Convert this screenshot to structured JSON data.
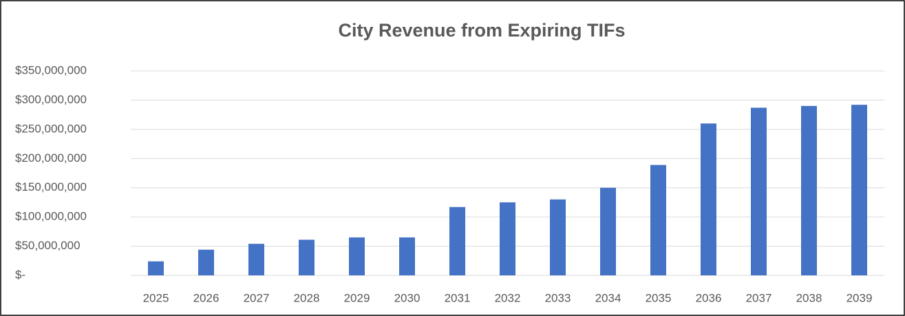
{
  "chart_data": {
    "type": "bar",
    "title": "City Revenue from Expiring TIFs",
    "categories": [
      "2025",
      "2026",
      "2027",
      "2028",
      "2029",
      "2030",
      "2031",
      "2032",
      "2033",
      "2034",
      "2035",
      "2036",
      "2037",
      "2038",
      "2039"
    ],
    "values": [
      24000000,
      44000000,
      54000000,
      61000000,
      65000000,
      65000000,
      117000000,
      125000000,
      130000000,
      150000000,
      189000000,
      260000000,
      287000000,
      290000000,
      292000000
    ],
    "color": "#4472c4",
    "ylim": [
      0,
      350000000
    ],
    "yticks": [
      {
        "value": 0,
        "label": "$-"
      },
      {
        "value": 50000000,
        "label": "$50,000,000"
      },
      {
        "value": 100000000,
        "label": "$100,000,000"
      },
      {
        "value": 150000000,
        "label": "$150,000,000"
      },
      {
        "value": 200000000,
        "label": "$200,000,000"
      },
      {
        "value": 250000000,
        "label": "$250,000,000"
      },
      {
        "value": 300000000,
        "label": "$300,000,000"
      },
      {
        "value": 350000000,
        "label": "$350,000,000"
      }
    ],
    "grid": true
  }
}
